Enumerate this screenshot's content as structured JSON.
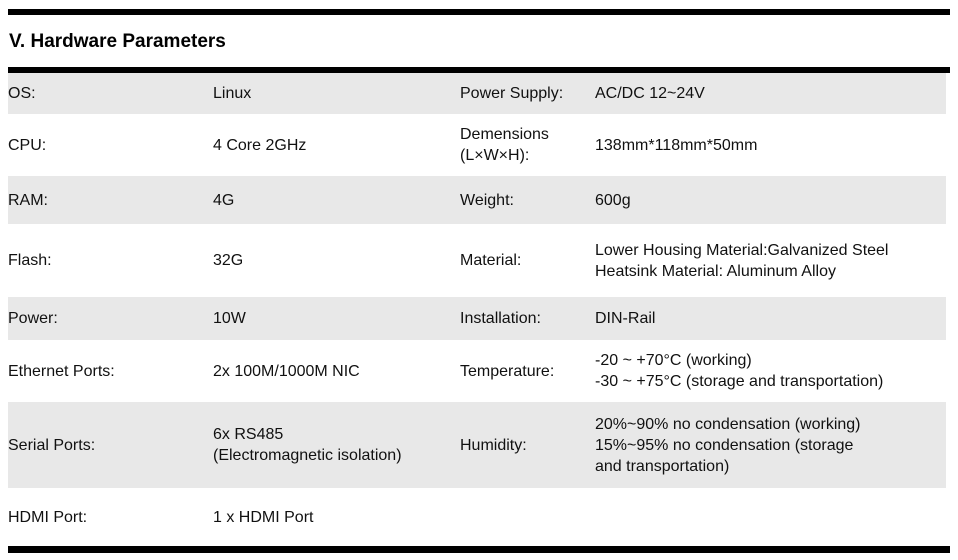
{
  "heading": "V. Hardware Parameters",
  "colors": {
    "background": "#ffffff",
    "row_shade": "#e8e8e8",
    "rule": "#000000",
    "text": "#111111"
  },
  "table": {
    "rows": [
      {
        "shaded": true,
        "left_label": "OS:",
        "left_value": "Linux",
        "right_label": "Power Supply:",
        "right_value": "AC/DC 12~24V"
      },
      {
        "shaded": false,
        "left_label": "CPU:",
        "left_value": "4 Core 2GHz",
        "right_label": "Demensions\n(L×W×H):",
        "right_value": "138mm*118mm*50mm"
      },
      {
        "shaded": true,
        "left_label": "RAM:",
        "left_value": "4G",
        "right_label": "Weight:",
        "right_value": "600g"
      },
      {
        "shaded": false,
        "left_label": "Flash:",
        "left_value": "32G",
        "right_label": "Material:",
        "right_value": "Lower Housing Material:Galvanized Steel\nHeatsink Material: Aluminum Alloy"
      },
      {
        "shaded": true,
        "left_label": "Power:",
        "left_value": "10W",
        "right_label": "Installation:",
        "right_value": "DIN-Rail"
      },
      {
        "shaded": false,
        "left_label": "Ethernet Ports:",
        "left_value": "2x 100M/1000M NIC",
        "right_label": "Temperature:",
        "right_value": "-20 ~ +70°C (working)\n-30 ~ +75°C (storage and transportation)"
      },
      {
        "shaded": true,
        "left_label": "Serial Ports:",
        "left_value": "6x RS485\n(Electromagnetic isolation)",
        "right_label": "Humidity:",
        "right_value": "20%~90% no condensation (working)\n15%~95% no condensation (storage\nand transportation)"
      },
      {
        "shaded": false,
        "left_label": "HDMI Port:",
        "left_value": "1 x HDMI Port",
        "right_label": "",
        "right_value": ""
      }
    ]
  }
}
